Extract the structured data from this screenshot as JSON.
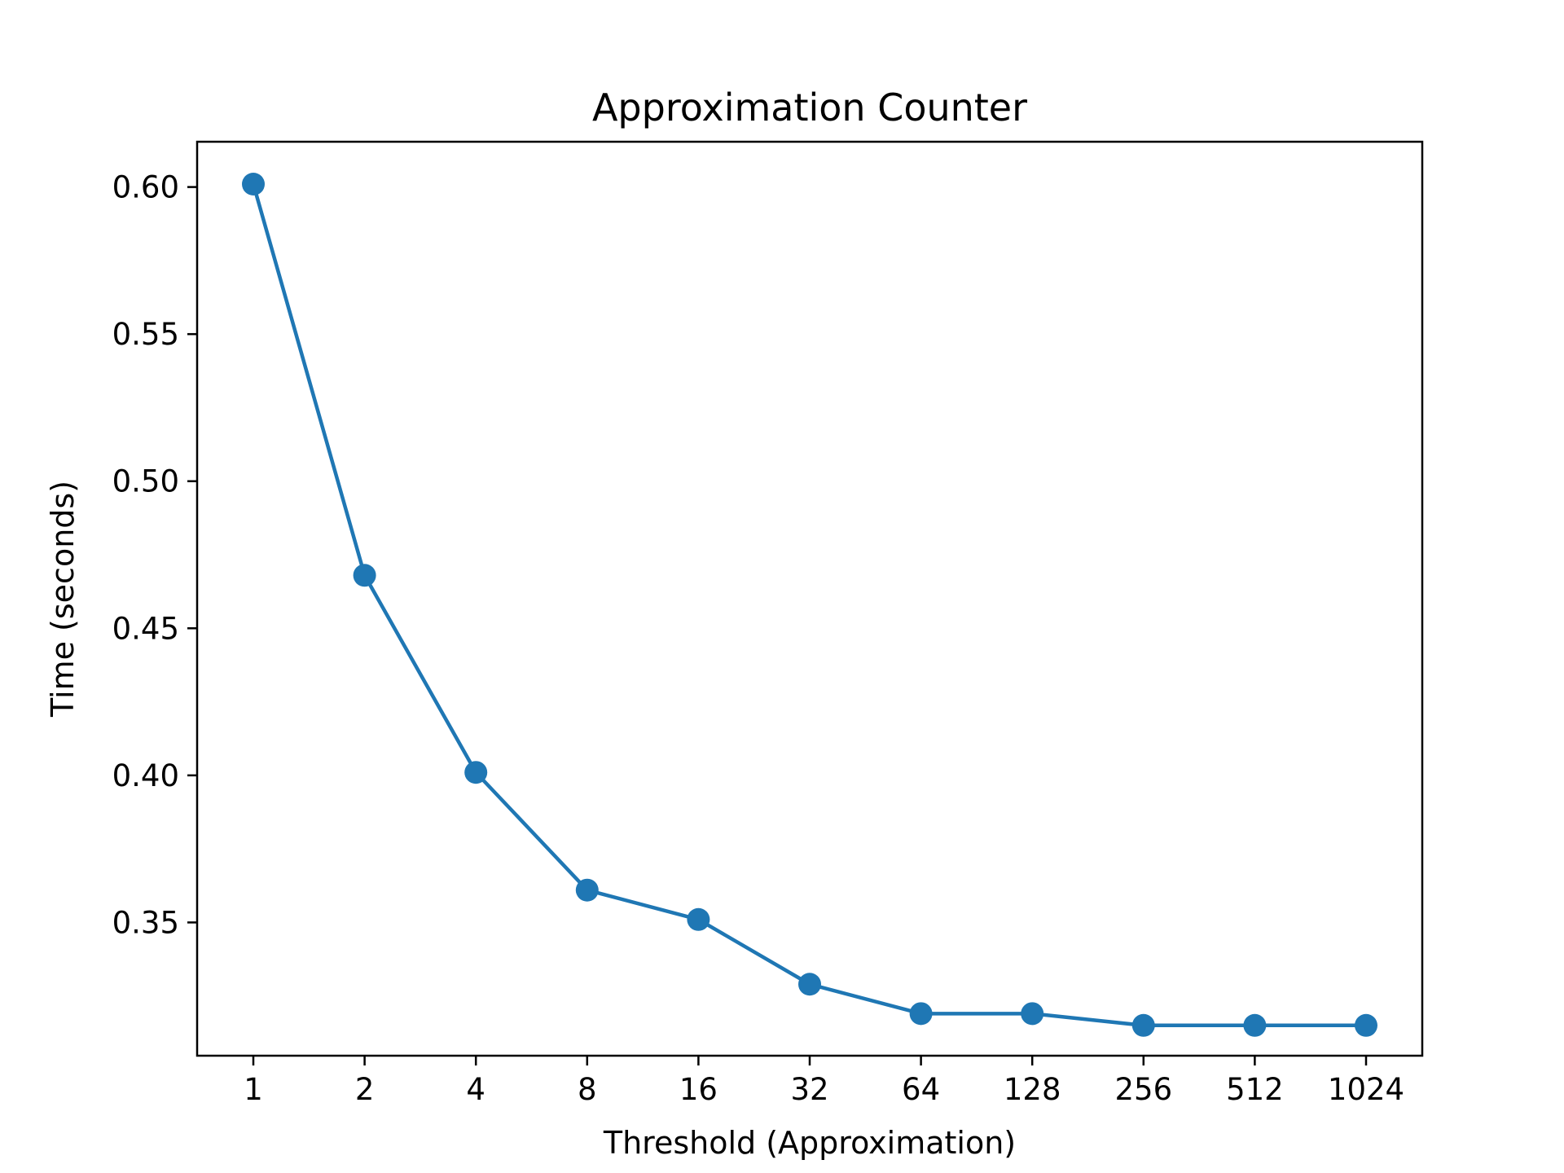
{
  "chart_data": {
    "type": "line",
    "title": "Approximation Counter",
    "xlabel": "Threshold (Approximation)",
    "ylabel": "Time (seconds)",
    "categories": [
      "1",
      "2",
      "4",
      "8",
      "16",
      "32",
      "64",
      "128",
      "256",
      "512",
      "1024"
    ],
    "series": [
      {
        "values": [
          0.601,
          0.468,
          0.401,
          0.361,
          0.351,
          0.329,
          0.319,
          0.319,
          0.315,
          0.315,
          0.315
        ],
        "color": "#1f77b4",
        "marker": "circle"
      }
    ],
    "ylim": [
      0.3047,
      0.6154
    ],
    "yticks": [
      0.35,
      0.4,
      0.45,
      0.5,
      0.55,
      0.6
    ],
    "ytick_labels": [
      "0.35",
      "0.40",
      "0.45",
      "0.50",
      "0.55",
      "0.60"
    ],
    "grid": false,
    "legend": "none"
  }
}
